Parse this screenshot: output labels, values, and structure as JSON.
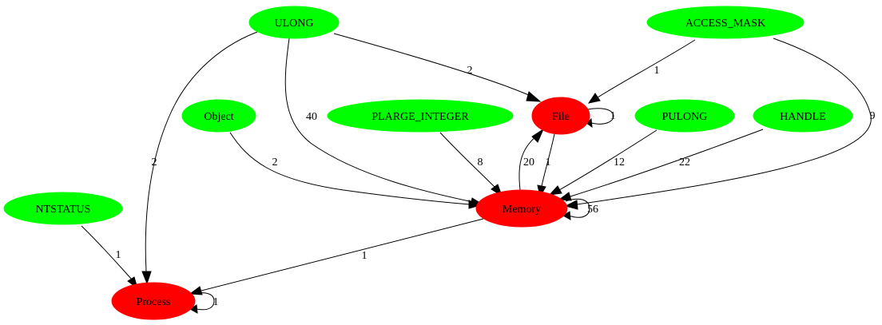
{
  "nodes": [
    {
      "id": "ulong",
      "label": "ULONG",
      "color": "#00ff00"
    },
    {
      "id": "access_mask",
      "label": "ACCESS_MASK",
      "color": "#00ff00"
    },
    {
      "id": "object",
      "label": "Object",
      "color": "#00ff00"
    },
    {
      "id": "plarge_integer",
      "label": "PLARGE_INTEGER",
      "color": "#00ff00"
    },
    {
      "id": "file",
      "label": "File",
      "color": "#ff0000"
    },
    {
      "id": "pulong",
      "label": "PULONG",
      "color": "#00ff00"
    },
    {
      "id": "handle",
      "label": "HANDLE",
      "color": "#00ff00"
    },
    {
      "id": "ntstatus",
      "label": "NTSTATUS",
      "color": "#00ff00"
    },
    {
      "id": "memory",
      "label": "Memory",
      "color": "#ff0000"
    },
    {
      "id": "process",
      "label": "Process",
      "color": "#ff0000"
    }
  ],
  "edges": [
    {
      "from": "ulong",
      "to": "file",
      "label": "2"
    },
    {
      "from": "ulong",
      "to": "memory",
      "label": "40"
    },
    {
      "from": "ulong",
      "to": "process",
      "label": "2"
    },
    {
      "from": "access_mask",
      "to": "file",
      "label": "1"
    },
    {
      "from": "access_mask",
      "to": "memory",
      "label": "9"
    },
    {
      "from": "file",
      "to": "file",
      "label": "1"
    },
    {
      "from": "file",
      "to": "memory",
      "label": "1"
    },
    {
      "from": "memory",
      "to": "file",
      "label": "20"
    },
    {
      "from": "object",
      "to": "memory",
      "label": "2"
    },
    {
      "from": "plarge_integer",
      "to": "memory",
      "label": "8"
    },
    {
      "from": "pulong",
      "to": "memory",
      "label": "12"
    },
    {
      "from": "handle",
      "to": "memory",
      "label": "22"
    },
    {
      "from": "memory",
      "to": "memory",
      "label": "56"
    },
    {
      "from": "ntstatus",
      "to": "process",
      "label": "1"
    },
    {
      "from": "memory",
      "to": "process",
      "label": "1"
    },
    {
      "from": "process",
      "to": "process",
      "label": "1"
    }
  ]
}
